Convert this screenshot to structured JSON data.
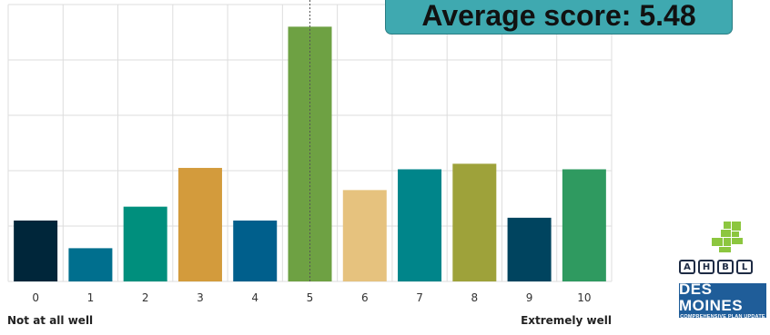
{
  "chart_data": {
    "type": "bar",
    "categories": [
      "0",
      "1",
      "2",
      "3",
      "4",
      "5",
      "6",
      "7",
      "8",
      "9",
      "10"
    ],
    "values": [
      2.2,
      1.2,
      2.7,
      4.1,
      2.2,
      9.2,
      3.3,
      4.05,
      4.25,
      2.3,
      4.05
    ],
    "colors": [
      "#00263a",
      "#006f8e",
      "#008f7d",
      "#d39b3c",
      "#005f8c",
      "#6ea143",
      "#e6c27e",
      "#00858a",
      "#9ea23a",
      "#00445f",
      "#2f9a60"
    ],
    "ylim": [
      0,
      10
    ],
    "grid": true,
    "mean_marker": 5.48,
    "xlabel_left": "Not at all well",
    "xlabel_right": "Extremely well"
  },
  "banner": {
    "text": "Average score: 5.48"
  },
  "logos": {
    "ahbl_letters": [
      "A",
      "H",
      "B",
      "L"
    ],
    "desmoines_title": "DES MOINES",
    "desmoines_subtitle": "COMPREHENSIVE PLAN UPDATE",
    "colors": {
      "green": "#8cc63f",
      "navy": "#1e2b44",
      "blue": "#1f5d99"
    }
  }
}
